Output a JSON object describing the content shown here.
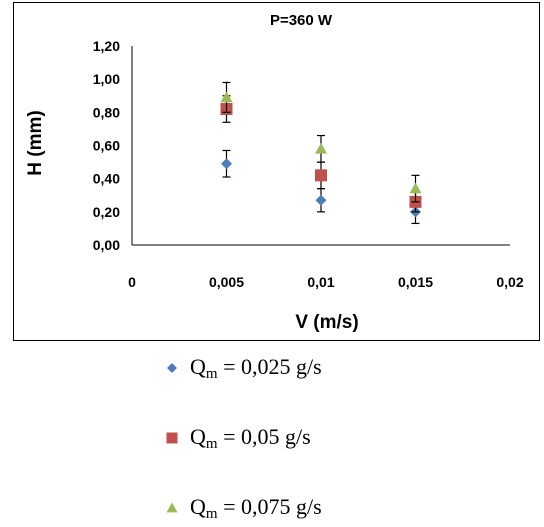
{
  "chart_data": {
    "type": "scatter",
    "title": "P=360 W",
    "xlabel": "V (m/s)",
    "ylabel": "H (mm)",
    "xlim": [
      0,
      0.02
    ],
    "ylim": [
      0,
      1.2
    ],
    "x_ticks": [
      "0",
      "0,005",
      "0,01",
      "0,015",
      "0,02"
    ],
    "y_ticks": [
      "0,00",
      "0,20",
      "0,40",
      "0,60",
      "0,80",
      "1,00",
      "1,20"
    ],
    "grid": false,
    "legend_position": "bottom",
    "series": [
      {
        "name": "Q_m = 0,025 g/s",
        "legend_main": "Q",
        "legend_sub": "m",
        "legend_rest": " = 0,025 g/s",
        "marker": "diamond",
        "color": "#4a7ebb",
        "x": [
          0.005,
          0.01,
          0.015
        ],
        "y": [
          0.49,
          0.27,
          0.2
        ],
        "error": [
          0.08,
          0.07,
          0.07
        ]
      },
      {
        "name": "Q_m = 0,05 g/s",
        "legend_main": "Q",
        "legend_sub": "m",
        "legend_rest": " = 0,05 g/s",
        "marker": "square",
        "color": "#c0504d",
        "x": [
          0.005,
          0.01,
          0.015
        ],
        "y": [
          0.82,
          0.42,
          0.26
        ],
        "error": [
          0.08,
          0.08,
          0.06
        ]
      },
      {
        "name": "Q_m = 0,075 g/s",
        "legend_main": "Q",
        "legend_sub": "m",
        "legend_rest": " = 0,075 g/s",
        "marker": "triangle",
        "color": "#9bbb59",
        "x": [
          0.005,
          0.01,
          0.015
        ],
        "y": [
          0.89,
          0.58,
          0.34
        ],
        "error": [
          0.09,
          0.08,
          0.08
        ]
      }
    ]
  }
}
